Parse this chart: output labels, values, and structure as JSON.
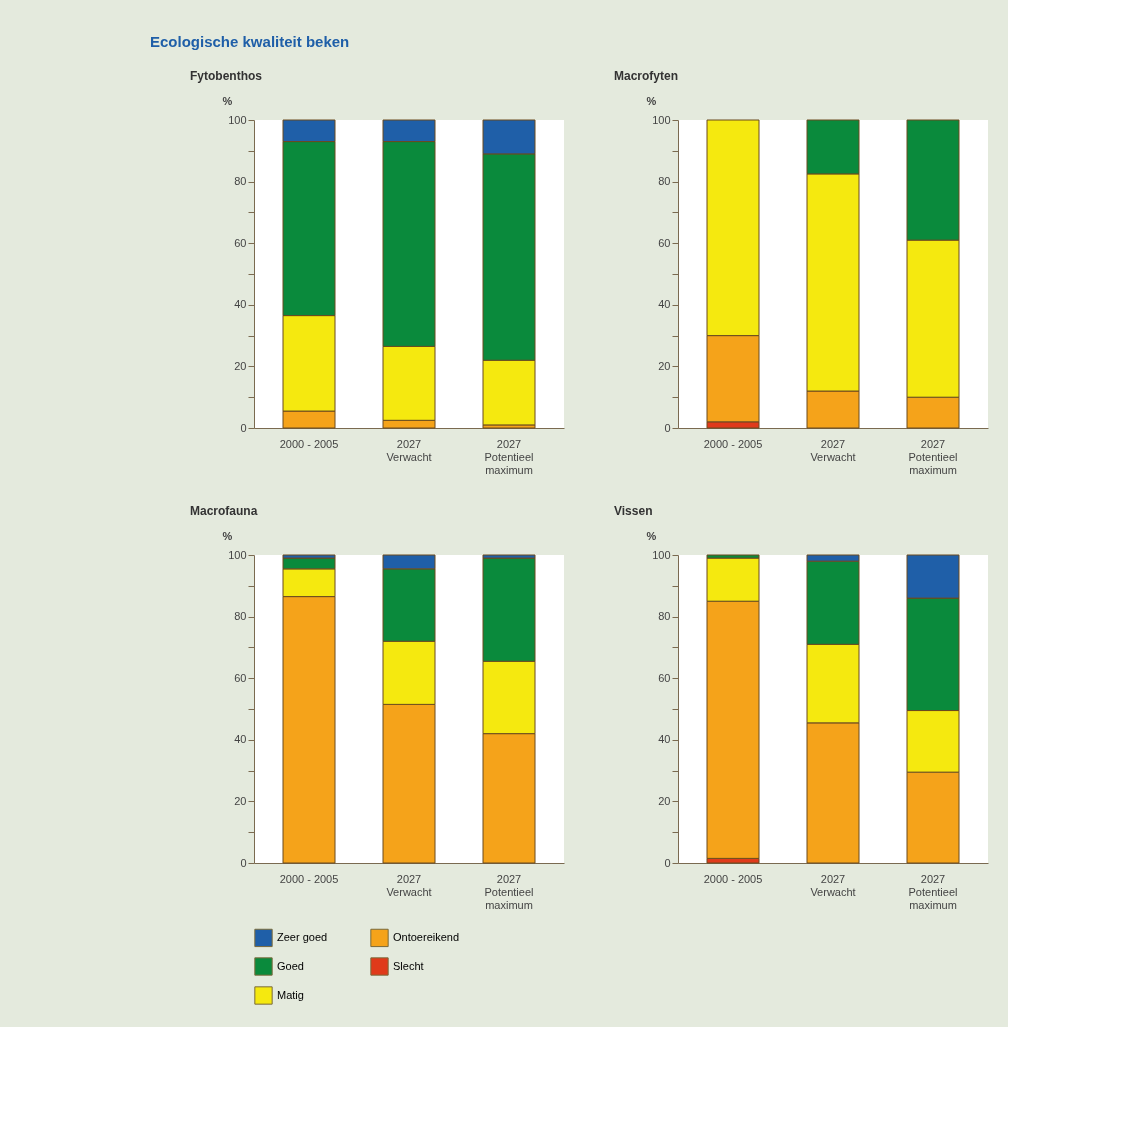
{
  "chart_data": [
    {
      "type": "bar",
      "stacked": true,
      "title": "Fytobenthos",
      "ylabel": "%",
      "annotations": [
        "Ecologische kwaliteit beken"
      ],
      "legend": "bottom left",
      "grid": false,
      "categories": [
        "2000 - 2005",
        "2027\nVerwacht",
        "2027\nPotentieel\nmaximum"
      ],
      "ylim": [
        0,
        100
      ],
      "yticks": [
        0,
        {
          "value": 10,
          "label": null
        },
        20,
        {
          "value": 30,
          "label": null
        },
        40,
        {
          "value": 50,
          "label": null
        },
        60,
        {
          "value": 70,
          "label": null
        },
        80,
        {
          "value": 90,
          "label": null
        },
        100
      ],
      "series": [
        {
          "name": "Slecht",
          "color": "#e03a1a",
          "values": [
            null,
            null,
            null
          ]
        },
        {
          "name": "Ontoereikend",
          "color": "#f5a31a",
          "values": [
            5.5,
            2.5,
            1
          ]
        },
        {
          "name": "Matig",
          "color": "#f5e90f",
          "values": [
            31,
            24,
            21
          ]
        },
        {
          "name": "Goed",
          "color": "#0a8a3c",
          "values": [
            56.5,
            66.5,
            67
          ]
        },
        {
          "name": "Zeer goed",
          "color": "#1f5fa8",
          "values": [
            7,
            7,
            11
          ]
        }
      ]
    },
    {
      "type": "bar",
      "stacked": true,
      "title": "Macrofyten",
      "ylabel": "%",
      "grid": false,
      "categories": [
        "2000 - 2005",
        "2027\nVerwacht",
        "2027\nPotentieel\nmaximum"
      ],
      "ylim": [
        0,
        100
      ],
      "yticks": [
        0,
        {
          "value": 10,
          "label": null
        },
        20,
        {
          "value": 30,
          "label": null
        },
        40,
        {
          "value": 50,
          "label": null
        },
        60,
        {
          "value": 70,
          "label": null
        },
        80,
        {
          "value": 90,
          "label": null
        },
        100
      ],
      "series": [
        {
          "color": "#e03a1a",
          "values": [
            2,
            null,
            null
          ]
        },
        {
          "color": "#f5a31a",
          "values": [
            28,
            12,
            10
          ]
        },
        {
          "color": "#f5e90f",
          "values": [
            70,
            70.5,
            51
          ]
        },
        {
          "color": "#0a8a3c",
          "values": [
            null,
            17.5,
            39
          ]
        },
        {
          "color": "#1f5fa8",
          "values": [
            null,
            null,
            null
          ]
        }
      ]
    },
    {
      "type": "bar",
      "stacked": true,
      "title": "Macrofauna",
      "ylabel": "%",
      "grid": false,
      "categories": [
        "2000 - 2005",
        "2027\nVerwacht",
        "2027\nPotentieel\nmaximum"
      ],
      "ylim": [
        0,
        100
      ],
      "yticks": [
        0,
        {
          "value": 10,
          "label": null
        },
        20,
        {
          "value": 30,
          "label": null
        },
        40,
        {
          "value": 50,
          "label": null
        },
        60,
        {
          "value": 70,
          "label": null
        },
        80,
        {
          "value": 90,
          "label": null
        },
        100
      ],
      "series": [
        {
          "color": "#e03a1a",
          "values": [
            null,
            null,
            null
          ]
        },
        {
          "color": "#f5a31a",
          "values": [
            86.5,
            51.5,
            42
          ]
        },
        {
          "color": "#f5e90f",
          "values": [
            9,
            20.5,
            23.5
          ]
        },
        {
          "color": "#0a8a3c",
          "values": [
            3.5,
            23.5,
            33.5
          ]
        },
        {
          "color": "#1f5fa8",
          "values": [
            1,
            4.5,
            1
          ]
        }
      ]
    },
    {
      "type": "bar",
      "stacked": true,
      "title": "Vissen",
      "ylabel": "%",
      "grid": false,
      "categories": [
        "2000 - 2005",
        "2027\nVerwacht",
        "2027\nPotentieel\nmaximum"
      ],
      "ylim": [
        0,
        100
      ],
      "yticks": [
        0,
        {
          "value": 10,
          "label": null
        },
        20,
        {
          "value": 30,
          "label": null
        },
        40,
        {
          "value": 50,
          "label": null
        },
        60,
        {
          "value": 70,
          "label": null
        },
        80,
        {
          "value": 90,
          "label": null
        },
        100
      ],
      "series": [
        {
          "color": "#e03a1a",
          "values": [
            1.5,
            null,
            null
          ]
        },
        {
          "color": "#f5a31a",
          "values": [
            83.5,
            45.5,
            29.5
          ]
        },
        {
          "color": "#f5e90f",
          "values": [
            14,
            25.5,
            20
          ]
        },
        {
          "color": "#0a8a3c",
          "values": [
            1,
            27,
            36.5
          ]
        },
        {
          "color": "#1f5fa8",
          "values": [
            null,
            2,
            14
          ]
        }
      ]
    }
  ]
}
